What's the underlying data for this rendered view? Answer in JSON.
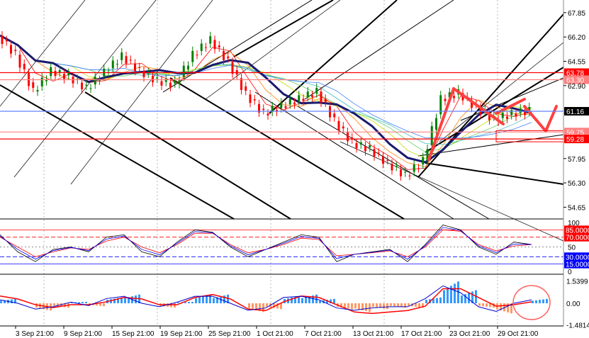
{
  "chart_data": {
    "type": "candlestick",
    "x_tick_labels": [
      "3 Sep 21:00",
      "9 Sep 21:00",
      "15 Sep 21:00",
      "19 Sep 21:00",
      "25 Sep 21:00",
      "1 Oct 21:00",
      "7 Oct 21:00",
      "13 Oct 21:00",
      "17 Oct 21:00",
      "23 Oct 21:00",
      "29 Oct 21:00"
    ],
    "price_axis": {
      "ticks": [
        "67.85",
        "66.20",
        "64.55",
        "62.90",
        "57.95",
        "56.30",
        "54.65"
      ],
      "ylim": [
        54.0,
        68.5
      ]
    },
    "closes": [
      66.3,
      65.0,
      62.5,
      63.9,
      63.5,
      62.7,
      63.8,
      64.9,
      63.9,
      63.2,
      63.0,
      65.0,
      66.0,
      64.5,
      62.3,
      61.0,
      61.5,
      62.0,
      62.5,
      60.5,
      59.0,
      58.6,
      57.6,
      56.8,
      57.8,
      62.0,
      62.4,
      61.4,
      60.6,
      61.0,
      61.2
    ],
    "levels": [
      {
        "label": "63.78",
        "value": 63.78,
        "color": "#ff0000"
      },
      {
        "label": "63.30",
        "value": 63.3,
        "color": "#ff8080"
      },
      {
        "label": "61.16",
        "value": 61.16,
        "color": "#000000"
      },
      {
        "label": "59.75",
        "value": 59.75,
        "color": "#ff8080"
      },
      {
        "label": "59.28",
        "value": 59.28,
        "color": "#ff0000"
      }
    ],
    "oscillator": {
      "ticks": [
        "100",
        "50",
        "0"
      ],
      "levels": [
        {
          "label": "85.0000",
          "value": 85,
          "color": "#ff0000"
        },
        {
          "label": "70.0000",
          "value": 70,
          "color": "#ff0000"
        },
        {
          "label": "30.0000",
          "value": 30,
          "color": "#0000ff"
        },
        {
          "label": "15.0000",
          "value": 15,
          "color": "#0000ff"
        }
      ],
      "ylim": [
        0,
        100
      ],
      "fast": [
        75,
        40,
        20,
        45,
        50,
        40,
        70,
        75,
        40,
        30,
        60,
        85,
        80,
        50,
        30,
        45,
        60,
        75,
        70,
        20,
        35,
        40,
        45,
        20,
        55,
        95,
        85,
        50,
        35,
        60,
        55
      ],
      "slow": [
        70,
        50,
        30,
        40,
        48,
        45,
        62,
        70,
        50,
        38,
        55,
        78,
        78,
        55,
        38,
        45,
        55,
        68,
        65,
        32,
        35,
        38,
        42,
        30,
        50,
        85,
        82,
        55,
        42,
        52,
        55
      ]
    },
    "macd": {
      "ticks": [
        "1.5399",
        "0.00",
        "-1.4814"
      ],
      "ylim": [
        -1.4814,
        1.5399
      ],
      "histogram": [
        0.3,
        0.0,
        -0.5,
        -0.3,
        0.1,
        -0.2,
        0.4,
        0.6,
        0.0,
        -0.3,
        0.1,
        0.6,
        0.6,
        0.0,
        -0.6,
        -0.4,
        0.5,
        0.6,
        0.3,
        -0.4,
        -0.6,
        -0.4,
        -0.3,
        -0.3,
        0.4,
        1.5,
        0.9,
        -0.3,
        -0.7,
        0.0,
        0.3
      ],
      "signal": [
        0.5,
        0.3,
        -0.1,
        -0.3,
        -0.1,
        -0.1,
        0.1,
        0.4,
        0.3,
        -0.1,
        -0.1,
        0.4,
        0.6,
        0.3,
        -0.4,
        -0.5,
        0.1,
        0.5,
        0.4,
        -0.1,
        -0.6,
        -0.7,
        -0.6,
        -0.5,
        -0.2,
        1.0,
        1.0,
        0.4,
        -0.2,
        -0.1,
        0.1
      ]
    }
  },
  "colors": {
    "up": "#008000",
    "down": "#ff0000",
    "ma": "#1a1a6e",
    "level_box": "#ff0000",
    "current": "#000000"
  }
}
